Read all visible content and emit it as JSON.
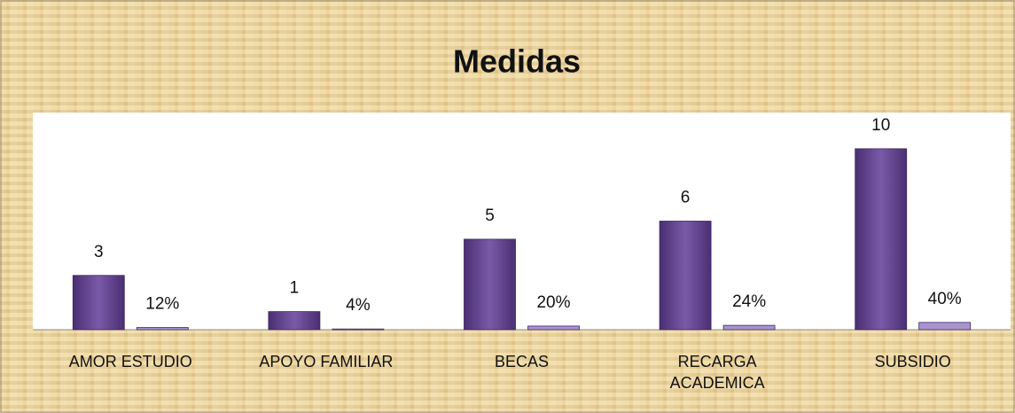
{
  "chart_data": {
    "type": "bar",
    "title": "Medidas",
    "categories": [
      "AMOR ESTUDIO",
      "APOYO FAMILIAR",
      "BECAS",
      "RECARGA ACADEMICA",
      "SUBSIDIO"
    ],
    "series": [
      {
        "color": "#6b4c9a",
        "values": [
          3,
          1,
          5,
          6,
          10
        ]
      },
      {
        "color": "#a795cf",
        "values": [
          0.12,
          0.04,
          0.2,
          0.24,
          0.4
        ],
        "value_labels": [
          "12%",
          "4%",
          "20%",
          "24%",
          "40%"
        ]
      }
    ],
    "ylim": [
      0,
      12
    ]
  }
}
